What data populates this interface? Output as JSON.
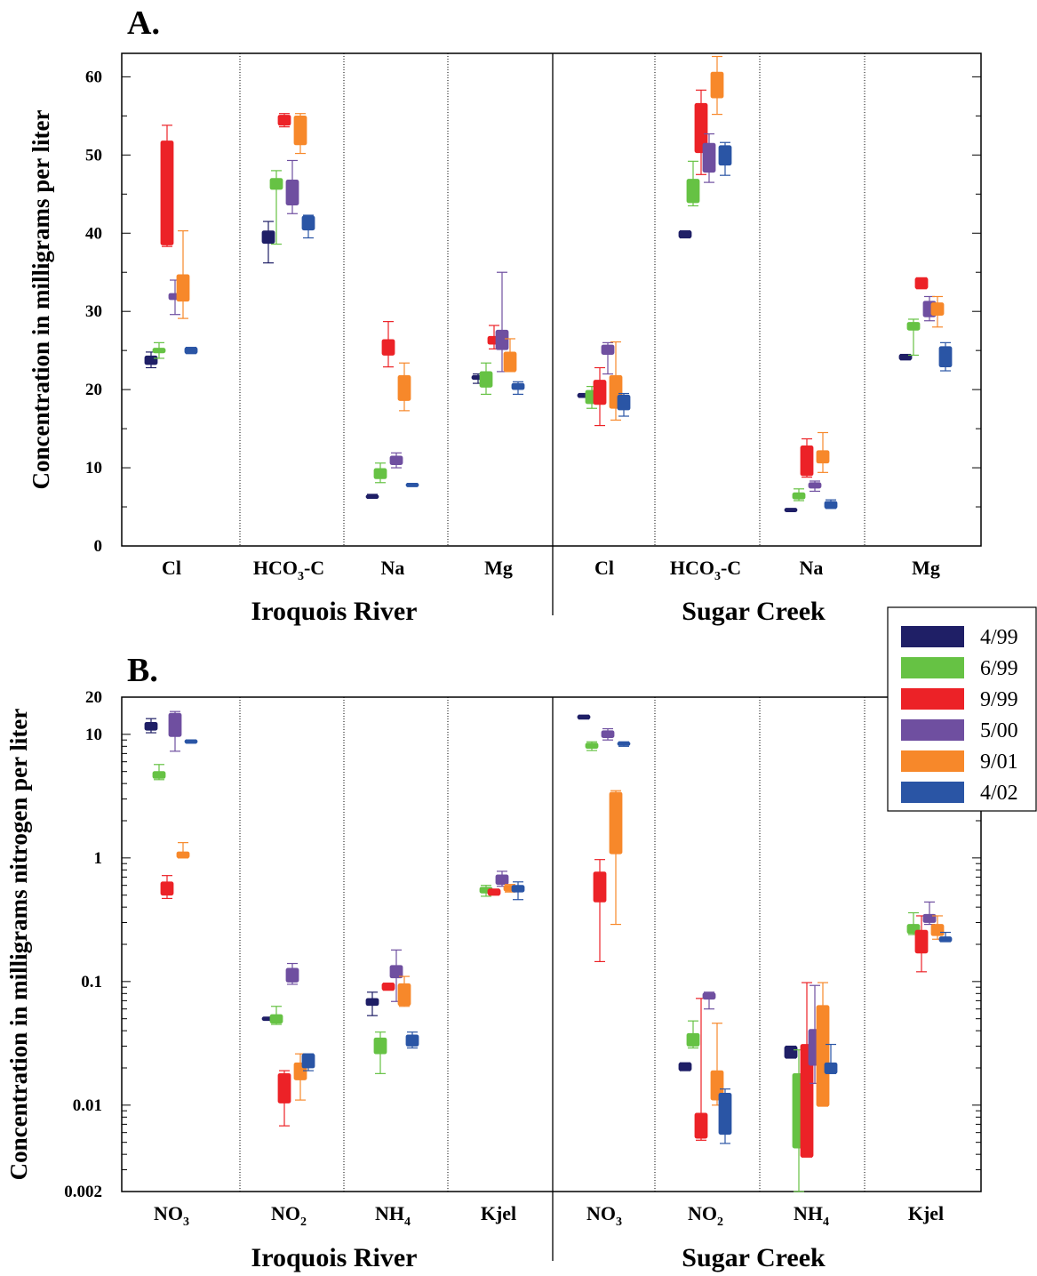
{
  "chart_data": [
    {
      "type": "box",
      "panel_label": "A.",
      "ylabel": "Concentration in milligrams per liter",
      "yscale": "linear",
      "ylim": [
        0,
        63
      ],
      "yticks": [
        0,
        10,
        20,
        30,
        40,
        50,
        60
      ],
      "ytick_labels": [
        "0",
        "10",
        "20",
        "30",
        "40",
        "50",
        "60"
      ],
      "groups": [
        "Iroquois River",
        "Sugar Creek"
      ],
      "categories": [
        {
          "group": "Iroquois River",
          "label": "Cl",
          "sub": ""
        },
        {
          "group": "Iroquois River",
          "label": "HCO",
          "sub": "3",
          "suffix": "-C"
        },
        {
          "group": "Iroquois River",
          "label": "Na",
          "sub": ""
        },
        {
          "group": "Iroquois River",
          "label": "Mg",
          "sub": ""
        },
        {
          "group": "Sugar Creek",
          "label": "Cl",
          "sub": ""
        },
        {
          "group": "Sugar Creek",
          "label": "HCO",
          "sub": "3",
          "suffix": "-C"
        },
        {
          "group": "Sugar Creek",
          "label": "Na",
          "sub": ""
        },
        {
          "group": "Sugar Creek",
          "label": "Mg",
          "sub": ""
        }
      ],
      "series": [
        {
          "name": "4/99",
          "color": "#1f1f66",
          "boxes": [
            [
              22.8,
              23.2,
              24.3,
              24.8
            ],
            [
              36.2,
              38.7,
              40.3,
              41.5
            ],
            [
              6.1,
              6.1,
              6.5,
              6.6
            ],
            [
              20.8,
              21.3,
              21.8,
              22.0
            ],
            [
              19.0,
              19.0,
              19.5,
              19.5
            ],
            [
              39.4,
              39.4,
              40.3,
              40.3
            ],
            [
              4.5,
              4.5,
              4.7,
              4.7
            ],
            [
              23.8,
              23.8,
              24.5,
              24.5
            ]
          ]
        },
        {
          "name": "6/99",
          "color": "#66c244",
          "boxes": [
            [
              24.0,
              24.7,
              25.3,
              26.0
            ],
            [
              38.6,
              45.6,
              47.0,
              48.0
            ],
            [
              8.1,
              8.6,
              9.9,
              10.6
            ],
            [
              19.4,
              20.3,
              22.3,
              23.4
            ],
            [
              17.6,
              18.2,
              19.9,
              20.4
            ],
            [
              43.5,
              43.9,
              46.9,
              49.2
            ],
            [
              5.8,
              6.0,
              6.8,
              7.3
            ],
            [
              24.4,
              27.6,
              28.6,
              29.0
            ]
          ]
        },
        {
          "name": "9/99",
          "color": "#ec2227",
          "boxes": [
            [
              38.3,
              38.5,
              51.8,
              53.8
            ],
            [
              53.6,
              53.8,
              55.1,
              55.3
            ],
            [
              22.9,
              24.4,
              26.4,
              28.7
            ],
            [
              25.2,
              25.8,
              26.8,
              28.2
            ],
            [
              15.4,
              18.1,
              21.2,
              22.8
            ],
            [
              47.5,
              50.3,
              56.6,
              58.3
            ],
            [
              8.8,
              9.0,
              12.8,
              13.7
            ],
            [
              32.9,
              32.9,
              34.3,
              34.3
            ]
          ]
        },
        {
          "name": "5/00",
          "color": "#6f4fa0",
          "boxes": [
            [
              29.6,
              31.5,
              32.3,
              34.0
            ],
            [
              42.5,
              43.6,
              46.8,
              49.3
            ],
            [
              10.0,
              10.4,
              11.5,
              11.9
            ],
            [
              22.3,
              25.1,
              27.6,
              35.0
            ],
            [
              22.0,
              24.5,
              25.7,
              26.0
            ],
            [
              46.5,
              47.8,
              51.5,
              52.7
            ],
            [
              7.0,
              7.4,
              8.1,
              8.3
            ],
            [
              28.8,
              29.3,
              31.3,
              31.9
            ]
          ]
        },
        {
          "name": "9/01",
          "color": "#f7882a",
          "boxes": [
            [
              29.1,
              31.3,
              34.7,
              40.3
            ],
            [
              50.2,
              51.3,
              55.0,
              55.3
            ],
            [
              17.3,
              18.6,
              21.8,
              23.4
            ],
            [
              22.3,
              22.3,
              24.8,
              26.5
            ],
            [
              16.1,
              17.6,
              21.8,
              26.1
            ],
            [
              55.2,
              57.3,
              60.6,
              62.6
            ],
            [
              9.4,
              10.6,
              12.2,
              14.5
            ],
            [
              28.0,
              29.5,
              31.1,
              31.9
            ]
          ]
        },
        {
          "name": "4/02",
          "color": "#2a55a5",
          "boxes": [
            [
              24.6,
              24.6,
              25.4,
              25.4
            ],
            [
              39.4,
              40.4,
              42.2,
              42.3
            ],
            [
              7.6,
              7.6,
              8.0,
              8.0
            ],
            [
              19.4,
              20.0,
              20.8,
              21.0
            ],
            [
              16.6,
              17.4,
              19.3,
              19.5
            ],
            [
              47.4,
              48.7,
              51.2,
              51.6
            ],
            [
              4.8,
              4.8,
              5.7,
              5.9
            ],
            [
              22.4,
              22.9,
              25.5,
              26.0
            ]
          ]
        }
      ]
    },
    {
      "type": "box",
      "panel_label": "B.",
      "ylabel": "Concentration in milligrams nitrogen per liter",
      "yscale": "log",
      "ylim": [
        0.002,
        20
      ],
      "yticks": [
        0.002,
        0.01,
        0.1,
        1,
        10,
        20
      ],
      "ytick_labels": [
        "0.002",
        "0.01",
        "0.1",
        "1",
        "10",
        "20"
      ],
      "groups": [
        "Iroquois River",
        "Sugar Creek"
      ],
      "categories": [
        {
          "group": "Iroquois River",
          "label": "NO",
          "sub": "3"
        },
        {
          "group": "Iroquois River",
          "label": "NO",
          "sub": "2"
        },
        {
          "group": "Iroquois River",
          "label": "NH",
          "sub": "4"
        },
        {
          "group": "Iroquois River",
          "label": "Kjel",
          "sub": ""
        },
        {
          "group": "Sugar Creek",
          "label": "NO",
          "sub": "3"
        },
        {
          "group": "Sugar Creek",
          "label": "NO",
          "sub": "2"
        },
        {
          "group": "Sugar Creek",
          "label": "NH",
          "sub": "4"
        },
        {
          "group": "Sugar Creek",
          "label": "Kjel",
          "sub": ""
        }
      ],
      "series": [
        {
          "name": "4/99",
          "color": "#1f1f66",
          "boxes": [
            [
              10.3,
              10.8,
              12.5,
              13.4
            ],
            [
              0.049,
              0.049,
              0.051,
              0.051
            ],
            [
              0.053,
              0.064,
              0.073,
              0.082
            ],
            null,
            [
              13.3,
              13.3,
              14.3,
              14.3
            ],
            [
              0.019,
              0.019,
              0.022,
              0.022
            ],
            [
              0.024,
              0.024,
              0.03,
              0.03
            ],
            null
          ]
        },
        {
          "name": "6/99",
          "color": "#66c244",
          "boxes": [
            [
              4.3,
              4.4,
              5.0,
              5.7
            ],
            [
              0.045,
              0.046,
              0.054,
              0.063
            ],
            [
              0.018,
              0.026,
              0.035,
              0.039
            ],
            [
              0.49,
              0.52,
              0.58,
              0.6
            ],
            [
              7.4,
              7.7,
              8.5,
              8.7
            ],
            [
              0.029,
              0.03,
              0.038,
              0.048
            ],
            [
              0.002,
              0.0045,
              0.018,
              0.028
            ],
            [
              0.24,
              0.245,
              0.29,
              0.36
            ]
          ]
        },
        {
          "name": "9/99",
          "color": "#ec2227",
          "boxes": [
            [
              0.47,
              0.5,
              0.64,
              0.72
            ],
            [
              0.0068,
              0.0104,
              0.018,
              0.019
            ],
            [
              0.085,
              0.085,
              0.097,
              0.097
            ],
            [
              0.5,
              0.5,
              0.56,
              0.56
            ],
            [
              0.145,
              0.44,
              0.77,
              0.97
            ],
            [
              0.0052,
              0.0054,
              0.0086,
              0.073
            ],
            [
              0.0038,
              0.0038,
              0.031,
              0.098
            ],
            [
              0.12,
              0.17,
              0.26,
              0.34
            ]
          ]
        },
        {
          "name": "5/00",
          "color": "#6f4fa0",
          "boxes": [
            [
              7.3,
              9.6,
              14.8,
              15.3
            ],
            [
              0.095,
              0.099,
              0.128,
              0.14
            ],
            [
              0.069,
              0.107,
              0.135,
              0.18
            ],
            [
              0.59,
              0.61,
              0.73,
              0.78
            ],
            [
              9.0,
              9.4,
              10.7,
              11.1
            ],
            [
              0.06,
              0.072,
              0.081,
              0.082
            ],
            [
              0.015,
              0.021,
              0.041,
              0.093
            ],
            [
              0.29,
              0.3,
              0.35,
              0.44
            ]
          ]
        },
        {
          "name": "9/01",
          "color": "#f7882a",
          "boxes": [
            [
              1.0,
              1.0,
              1.12,
              1.33
            ],
            [
              0.011,
              0.016,
              0.022,
              0.026
            ],
            [
              0.063,
              0.064,
              0.096,
              0.11
            ],
            [
              0.53,
              0.54,
              0.6,
              0.61
            ],
            [
              0.29,
              1.08,
              3.4,
              3.5
            ],
            [
              0.01,
              0.011,
              0.019,
              0.046
            ],
            [
              0.0098,
              0.0098,
              0.064,
              0.098
            ],
            [
              0.22,
              0.235,
              0.29,
              0.34
            ]
          ]
        },
        {
          "name": "4/02",
          "color": "#2a55a5",
          "boxes": [
            [
              8.5,
              8.5,
              9.0,
              9.0
            ],
            [
              0.019,
              0.02,
              0.026,
              0.026
            ],
            [
              0.029,
              0.03,
              0.037,
              0.039
            ],
            [
              0.46,
              0.53,
              0.6,
              0.64
            ],
            [
              8.0,
              8.2,
              8.6,
              8.7
            ],
            [
              0.0049,
              0.0058,
              0.0125,
              0.0135
            ],
            [
              0.018,
              0.018,
              0.022,
              0.031
            ],
            [
              0.21,
              0.21,
              0.23,
              0.25
            ]
          ]
        }
      ]
    }
  ],
  "legend": {
    "entries": [
      {
        "label": "4/99",
        "color": "#1f1f66"
      },
      {
        "label": "6/99",
        "color": "#66c244"
      },
      {
        "label": "9/99",
        "color": "#ec2227"
      },
      {
        "label": "5/00",
        "color": "#6f4fa0"
      },
      {
        "label": "9/01",
        "color": "#f7882a"
      },
      {
        "label": "4/02",
        "color": "#2a55a5"
      }
    ]
  }
}
